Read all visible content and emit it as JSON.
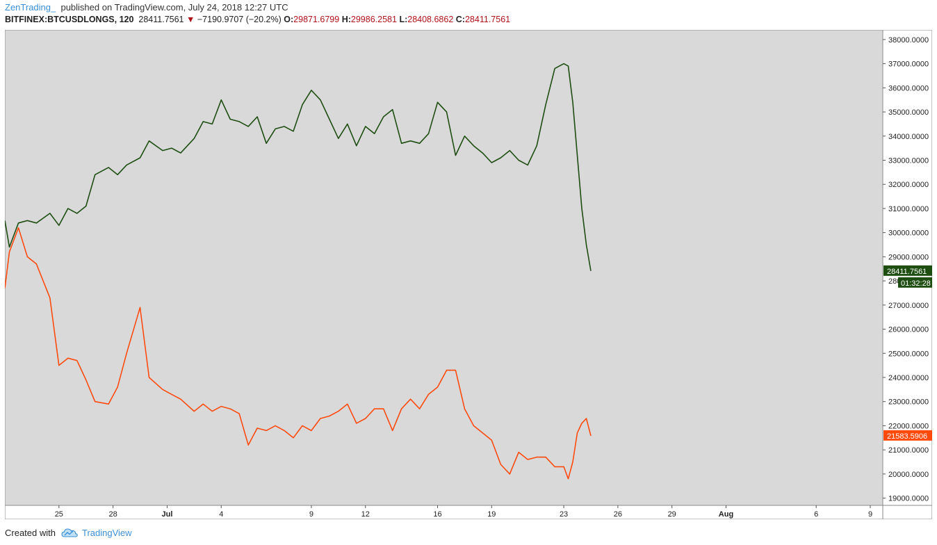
{
  "header": {
    "author": "ZenTrading_",
    "published": "published on TradingView.com, July 24, 2018 12:27 UTC",
    "symbol": "BITFINEX:BTCUSDLONGS, 120",
    "last": "28411.7561",
    "change": "−7190.9707 (−20.2%)",
    "o_label": "O:",
    "o_value": "29871.6799",
    "h_label": "H:",
    "h_value": "29986.2581",
    "l_label": "L:",
    "l_value": "28408.6862",
    "c_label": "C:",
    "c_value": "28411.7561"
  },
  "footer": {
    "created_with": "Created with",
    "brand": "TradingView"
  },
  "colors": {
    "plot_bg": "#d9d9d9",
    "longs": "#1d4d11",
    "shorts": "#ff4a0c",
    "down": "#b0121a",
    "link": "#3a8fd8"
  },
  "chart_data": {
    "type": "line",
    "ylim": [
      18700,
      38400
    ],
    "x_range": [
      "2018-06-22",
      "2018-08-09"
    ],
    "xticks": [
      {
        "label": "25",
        "date": "2018-06-25"
      },
      {
        "label": "28",
        "date": "2018-06-28"
      },
      {
        "label": "Jul",
        "date": "2018-07-01"
      },
      {
        "label": "4",
        "date": "2018-07-04"
      },
      {
        "label": "9",
        "date": "2018-07-09"
      },
      {
        "label": "12",
        "date": "2018-07-12"
      },
      {
        "label": "16",
        "date": "2018-07-16"
      },
      {
        "label": "19",
        "date": "2018-07-19"
      },
      {
        "label": "23",
        "date": "2018-07-23"
      },
      {
        "label": "26",
        "date": "2018-07-26"
      },
      {
        "label": "29",
        "date": "2018-07-29"
      },
      {
        "label": "Aug",
        "date": "2018-08-01"
      },
      {
        "label": "6",
        "date": "2018-08-06"
      },
      {
        "label": "9",
        "date": "2018-08-09"
      }
    ],
    "yticks": [
      "19000.0000",
      "20000.0000",
      "21000.0000",
      "22000.0000",
      "23000.0000",
      "24000.0000",
      "25000.0000",
      "26000.0000",
      "27000.0000",
      "28000.0000",
      "29000.0000",
      "30000.0000",
      "31000.0000",
      "32000.0000",
      "33000.0000",
      "34000.0000",
      "35000.0000",
      "36000.0000",
      "37000.0000",
      "38000.0000"
    ],
    "series": [
      {
        "key": "longs",
        "last_label": "28411.7561",
        "countdown": "01:32:28",
        "x": [
          "2018-06-22 00:00",
          "2018-06-22 06:00",
          "2018-06-22 18:00",
          "2018-06-23 06:00",
          "2018-06-23 18:00",
          "2018-06-24 12:00",
          "2018-06-25 00:00",
          "2018-06-25 12:00",
          "2018-06-26 00:00",
          "2018-06-26 12:00",
          "2018-06-27 00:00",
          "2018-06-27 18:00",
          "2018-06-28 06:00",
          "2018-06-28 18:00",
          "2018-06-29 12:00",
          "2018-06-30 00:00",
          "2018-06-30 18:00",
          "2018-07-01 06:00",
          "2018-07-01 18:00",
          "2018-07-02 12:00",
          "2018-07-03 00:00",
          "2018-07-03 12:00",
          "2018-07-04 00:00",
          "2018-07-04 12:00",
          "2018-07-05 00:00",
          "2018-07-05 12:00",
          "2018-07-06 00:00",
          "2018-07-06 12:00",
          "2018-07-07 00:00",
          "2018-07-07 12:00",
          "2018-07-08 00:00",
          "2018-07-08 12:00",
          "2018-07-09 00:00",
          "2018-07-09 12:00",
          "2018-07-10 00:00",
          "2018-07-10 12:00",
          "2018-07-11 00:00",
          "2018-07-11 12:00",
          "2018-07-12 00:00",
          "2018-07-12 12:00",
          "2018-07-13 00:00",
          "2018-07-13 12:00",
          "2018-07-14 00:00",
          "2018-07-14 12:00",
          "2018-07-15 00:00",
          "2018-07-15 12:00",
          "2018-07-16 00:00",
          "2018-07-16 12:00",
          "2018-07-17 00:00",
          "2018-07-17 12:00",
          "2018-07-18 00:00",
          "2018-07-18 12:00",
          "2018-07-19 00:00",
          "2018-07-19 12:00",
          "2018-07-20 00:00",
          "2018-07-20 12:00",
          "2018-07-21 00:00",
          "2018-07-21 12:00",
          "2018-07-22 00:00",
          "2018-07-22 12:00",
          "2018-07-23 00:00",
          "2018-07-23 06:00",
          "2018-07-23 12:00",
          "2018-07-23 18:00",
          "2018-07-24 00:00",
          "2018-07-24 06:00",
          "2018-07-24 12:00"
        ],
        "y": [
          30500,
          29400,
          30400,
          30500,
          30400,
          30800,
          30300,
          31000,
          30800,
          31100,
          32400,
          32700,
          32400,
          32800,
          33100,
          33800,
          33400,
          33500,
          33300,
          33900,
          34600,
          34500,
          35500,
          34700,
          34600,
          34400,
          34800,
          33700,
          34300,
          34400,
          34200,
          35300,
          35900,
          35500,
          34700,
          33900,
          34500,
          33600,
          34400,
          34100,
          34800,
          35100,
          33700,
          33800,
          33700,
          34100,
          35400,
          35000,
          33200,
          34000,
          33600,
          33300,
          32900,
          33100,
          33400,
          33000,
          32800,
          33600,
          35300,
          36800,
          37000,
          36900,
          35400,
          33200,
          31000,
          29500,
          28412
        ]
      },
      {
        "key": "shorts",
        "last_label": "21583.5906",
        "x": [
          "2018-06-22 00:00",
          "2018-06-22 06:00",
          "2018-06-22 18:00",
          "2018-06-23 06:00",
          "2018-06-23 18:00",
          "2018-06-24 12:00",
          "2018-06-25 00:00",
          "2018-06-25 12:00",
          "2018-06-26 00:00",
          "2018-06-26 12:00",
          "2018-06-27 00:00",
          "2018-06-27 18:00",
          "2018-06-28 06:00",
          "2018-06-28 18:00",
          "2018-06-29 12:00",
          "2018-06-30 00:00",
          "2018-06-30 18:00",
          "2018-07-01 06:00",
          "2018-07-01 18:00",
          "2018-07-02 12:00",
          "2018-07-03 00:00",
          "2018-07-03 12:00",
          "2018-07-04 00:00",
          "2018-07-04 12:00",
          "2018-07-05 00:00",
          "2018-07-05 12:00",
          "2018-07-06 00:00",
          "2018-07-06 12:00",
          "2018-07-07 00:00",
          "2018-07-07 12:00",
          "2018-07-08 00:00",
          "2018-07-08 12:00",
          "2018-07-09 00:00",
          "2018-07-09 12:00",
          "2018-07-10 00:00",
          "2018-07-10 12:00",
          "2018-07-11 00:00",
          "2018-07-11 12:00",
          "2018-07-12 00:00",
          "2018-07-12 12:00",
          "2018-07-13 00:00",
          "2018-07-13 12:00",
          "2018-07-14 00:00",
          "2018-07-14 12:00",
          "2018-07-15 00:00",
          "2018-07-15 12:00",
          "2018-07-16 00:00",
          "2018-07-16 12:00",
          "2018-07-17 00:00",
          "2018-07-17 12:00",
          "2018-07-18 00:00",
          "2018-07-18 12:00",
          "2018-07-19 00:00",
          "2018-07-19 12:00",
          "2018-07-20 00:00",
          "2018-07-20 12:00",
          "2018-07-21 00:00",
          "2018-07-21 12:00",
          "2018-07-22 00:00",
          "2018-07-22 12:00",
          "2018-07-23 00:00",
          "2018-07-23 06:00",
          "2018-07-23 12:00",
          "2018-07-23 18:00",
          "2018-07-24 00:00",
          "2018-07-24 06:00",
          "2018-07-24 12:00"
        ],
        "y": [
          27700,
          29200,
          30200,
          29000,
          28700,
          27300,
          24500,
          24800,
          24700,
          23900,
          23000,
          22900,
          23600,
          25000,
          26900,
          24000,
          23500,
          23300,
          23100,
          22600,
          22900,
          22600,
          22800,
          22700,
          22500,
          21200,
          21900,
          21800,
          22000,
          21800,
          21500,
          22000,
          21800,
          22300,
          22400,
          22600,
          22900,
          22100,
          22300,
          22700,
          22700,
          21800,
          22700,
          23100,
          22700,
          23300,
          23600,
          24300,
          24300,
          22700,
          22000,
          21700,
          21400,
          20400,
          20000,
          20900,
          20600,
          20700,
          20700,
          20300,
          20300,
          19800,
          20500,
          21700,
          22100,
          22300,
          21584
        ]
      }
    ]
  }
}
